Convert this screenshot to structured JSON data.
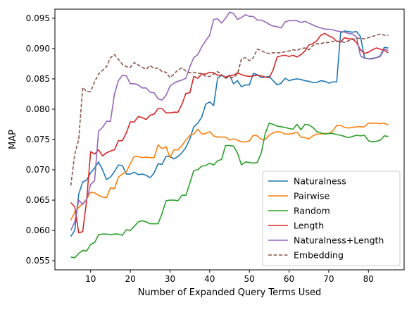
{
  "chart_data": {
    "type": "line",
    "title": "",
    "xlabel": "Number of Expanded Query Terms Used",
    "ylabel": "MAP",
    "xlim": [
      1,
      89
    ],
    "ylim": [
      0.0535,
      0.0965
    ],
    "xticks": [
      10,
      20,
      30,
      40,
      50,
      60,
      70,
      80
    ],
    "yticks": [
      0.055,
      0.06,
      0.065,
      0.07,
      0.075,
      0.08,
      0.085,
      0.09,
      0.095
    ],
    "ytick_labels": [
      "0.055",
      "0.060",
      "0.065",
      "0.070",
      "0.075",
      "0.080",
      "0.085",
      "0.090",
      "0.095"
    ],
    "grid": false,
    "legend_position": "lower-right",
    "series": [
      {
        "name": "Naturalness",
        "color": "#1f77b4",
        "dash": "solid",
        "x": [
          5,
          6,
          7,
          8,
          9,
          10,
          11,
          12,
          13,
          14,
          15,
          16,
          17,
          18,
          19,
          20,
          21,
          22,
          23,
          24,
          25,
          26,
          27,
          28,
          29,
          30,
          31,
          32,
          33,
          34,
          35,
          36,
          37,
          38,
          39,
          40,
          41,
          42,
          43,
          44,
          45,
          46,
          47,
          48,
          49,
          50,
          51,
          52,
          53,
          54,
          55,
          56,
          57,
          58,
          59,
          60,
          61,
          62,
          63,
          64,
          65,
          66,
          67,
          68,
          69,
          70,
          71,
          72,
          73,
          74,
          75,
          76,
          77,
          78,
          79,
          80,
          81,
          82,
          83,
          84,
          85
        ],
        "y": [
          0.059,
          0.06,
          0.066,
          0.068,
          0.0683,
          0.0695,
          0.0703,
          0.0713,
          0.07,
          0.0684,
          0.0688,
          0.0697,
          0.0708,
          0.0707,
          0.0693,
          0.0693,
          0.0696,
          0.0692,
          0.0693,
          0.0691,
          0.0687,
          0.0695,
          0.071,
          0.0709,
          0.0722,
          0.0722,
          0.0718,
          0.0722,
          0.0728,
          0.0737,
          0.0751,
          0.0771,
          0.0777,
          0.0787,
          0.0808,
          0.0812,
          0.0806,
          0.0851,
          0.0856,
          0.0852,
          0.0856,
          0.0842,
          0.0847,
          0.0837,
          0.084,
          0.084,
          0.0859,
          0.0857,
          0.0852,
          0.0853,
          0.0854,
          0.0847,
          0.084,
          0.0843,
          0.0851,
          0.0847,
          0.0849,
          0.085,
          0.0849,
          0.0847,
          0.0846,
          0.0844,
          0.0844,
          0.0847,
          0.0846,
          0.0843,
          0.0845,
          0.0845,
          0.0926,
          0.0929,
          0.0928,
          0.0927,
          0.0928,
          0.092,
          0.0885,
          0.0883,
          0.0883,
          0.0885,
          0.0888,
          0.0902,
          0.0901
        ]
      },
      {
        "name": "Pairwise",
        "color": "#ff7f0e",
        "dash": "solid",
        "x": [
          5,
          6,
          7,
          8,
          9,
          10,
          11,
          12,
          13,
          14,
          15,
          16,
          17,
          18,
          19,
          20,
          21,
          22,
          23,
          24,
          25,
          26,
          27,
          28,
          29,
          30,
          31,
          32,
          33,
          34,
          35,
          36,
          37,
          38,
          39,
          40,
          41,
          42,
          43,
          44,
          45,
          46,
          47,
          48,
          49,
          50,
          51,
          52,
          53,
          54,
          55,
          56,
          57,
          58,
          59,
          60,
          61,
          62,
          63,
          64,
          65,
          66,
          67,
          68,
          69,
          70,
          71,
          72,
          73,
          74,
          75,
          76,
          77,
          78,
          79,
          80,
          81,
          82,
          83,
          84,
          85
        ],
        "y": [
          0.0617,
          0.063,
          0.0638,
          0.0644,
          0.0652,
          0.0663,
          0.0662,
          0.0658,
          0.0655,
          0.0654,
          0.067,
          0.0669,
          0.0688,
          0.0693,
          0.0697,
          0.071,
          0.0722,
          0.0722,
          0.072,
          0.0721,
          0.072,
          0.072,
          0.0741,
          0.0735,
          0.0738,
          0.072,
          0.0733,
          0.0733,
          0.074,
          0.0749,
          0.0757,
          0.0759,
          0.0767,
          0.0759,
          0.076,
          0.0763,
          0.0756,
          0.0754,
          0.0754,
          0.0754,
          0.0749,
          0.0751,
          0.0749,
          0.0746,
          0.0746,
          0.0748,
          0.0757,
          0.0756,
          0.075,
          0.075,
          0.0757,
          0.0761,
          0.0763,
          0.0762,
          0.0759,
          0.0759,
          0.076,
          0.0762,
          0.0754,
          0.0753,
          0.0751,
          0.0756,
          0.0759,
          0.0759,
          0.076,
          0.076,
          0.0764,
          0.0773,
          0.0773,
          0.077,
          0.0769,
          0.077,
          0.0771,
          0.0771,
          0.0771,
          0.0777,
          0.0777,
          0.0777,
          0.0776,
          0.0777,
          0.0774
        ]
      },
      {
        "name": "Random",
        "color": "#2ca02c",
        "dash": "solid",
        "x": [
          5,
          6,
          7,
          8,
          9,
          10,
          11,
          12,
          13,
          14,
          15,
          16,
          17,
          18,
          19,
          20,
          21,
          22,
          23,
          24,
          25,
          26,
          27,
          28,
          29,
          30,
          31,
          32,
          33,
          34,
          35,
          36,
          37,
          38,
          39,
          40,
          41,
          42,
          43,
          44,
          45,
          46,
          47,
          48,
          49,
          50,
          51,
          52,
          53,
          54,
          55,
          56,
          57,
          58,
          59,
          60,
          61,
          62,
          63,
          64,
          65,
          66,
          67,
          68,
          69,
          70,
          71,
          72,
          73,
          74,
          75,
          76,
          77,
          78,
          79,
          80,
          81,
          82,
          83,
          84,
          85
        ],
        "y": [
          0.0556,
          0.0555,
          0.0562,
          0.0567,
          0.0566,
          0.0577,
          0.058,
          0.0593,
          0.0594,
          0.0594,
          0.0593,
          0.0594,
          0.0594,
          0.0592,
          0.0601,
          0.06,
          0.0607,
          0.0614,
          0.0616,
          0.0614,
          0.0611,
          0.0611,
          0.0611,
          0.0628,
          0.0649,
          0.065,
          0.065,
          0.0649,
          0.0658,
          0.0658,
          0.0678,
          0.0699,
          0.07,
          0.0706,
          0.0707,
          0.0711,
          0.0708,
          0.0715,
          0.0717,
          0.074,
          0.074,
          0.0739,
          0.0728,
          0.0708,
          0.0713,
          0.0712,
          0.0711,
          0.0712,
          0.0728,
          0.076,
          0.0777,
          0.0775,
          0.0772,
          0.0771,
          0.077,
          0.0768,
          0.0767,
          0.0775,
          0.0766,
          0.0775,
          0.0774,
          0.077,
          0.0763,
          0.0761,
          0.0759,
          0.076,
          0.076,
          0.0758,
          0.0757,
          0.0755,
          0.0753,
          0.0755,
          0.0757,
          0.0756,
          0.0757,
          0.0748,
          0.0746,
          0.0747,
          0.0749,
          0.0756,
          0.0755
        ]
      },
      {
        "name": "Length",
        "color": "#d62728",
        "dash": "solid",
        "x": [
          5,
          6,
          7,
          8,
          9,
          10,
          11,
          12,
          13,
          14,
          15,
          16,
          17,
          18,
          19,
          20,
          21,
          22,
          23,
          24,
          25,
          26,
          27,
          28,
          29,
          30,
          31,
          32,
          33,
          34,
          35,
          36,
          37,
          38,
          39,
          40,
          41,
          42,
          43,
          44,
          45,
          46,
          47,
          48,
          49,
          50,
          51,
          52,
          53,
          54,
          55,
          56,
          57,
          58,
          59,
          60,
          61,
          62,
          63,
          64,
          65,
          66,
          67,
          68,
          69,
          70,
          71,
          72,
          73,
          74,
          75,
          76,
          77,
          78,
          79,
          80,
          81,
          82,
          83,
          84,
          85
        ],
        "y": [
          0.0646,
          0.0639,
          0.0596,
          0.0598,
          0.065,
          0.073,
          0.0726,
          0.0733,
          0.0723,
          0.0728,
          0.0731,
          0.0733,
          0.0748,
          0.0748,
          0.0761,
          0.0779,
          0.0779,
          0.0788,
          0.0786,
          0.0783,
          0.079,
          0.0792,
          0.0801,
          0.0801,
          0.0794,
          0.0794,
          0.0795,
          0.0795,
          0.0808,
          0.0826,
          0.0827,
          0.0854,
          0.0851,
          0.0858,
          0.0858,
          0.0861,
          0.086,
          0.0856,
          0.0856,
          0.0853,
          0.0855,
          0.0856,
          0.086,
          0.0857,
          0.0855,
          0.0854,
          0.0855,
          0.0856,
          0.0855,
          0.0853,
          0.0852,
          0.0865,
          0.0886,
          0.0888,
          0.0889,
          0.0887,
          0.0889,
          0.0886,
          0.089,
          0.0896,
          0.0906,
          0.0908,
          0.0913,
          0.0922,
          0.0925,
          0.0921,
          0.0918,
          0.0912,
          0.0911,
          0.0918,
          0.0916,
          0.0916,
          0.091,
          0.0898,
          0.0892,
          0.0894,
          0.0898,
          0.0901,
          0.0899,
          0.0897,
          0.0893
        ]
      },
      {
        "name": "Naturalness+Length",
        "color": "#9467bd",
        "dash": "solid",
        "x": [
          5,
          6,
          7,
          8,
          9,
          10,
          11,
          12,
          13,
          14,
          15,
          16,
          17,
          18,
          19,
          20,
          21,
          22,
          23,
          24,
          25,
          26,
          27,
          28,
          29,
          30,
          31,
          32,
          33,
          34,
          35,
          36,
          37,
          38,
          39,
          40,
          41,
          42,
          43,
          44,
          45,
          46,
          47,
          48,
          49,
          50,
          51,
          52,
          53,
          54,
          55,
          56,
          57,
          58,
          59,
          60,
          61,
          62,
          63,
          64,
          65,
          66,
          67,
          68,
          69,
          70,
          71,
          72,
          73,
          74,
          75,
          76,
          77,
          78,
          79,
          80,
          81,
          82,
          83,
          84,
          85
        ],
        "y": [
          0.06,
          0.0614,
          0.065,
          0.0643,
          0.0651,
          0.0676,
          0.0682,
          0.0764,
          0.077,
          0.078,
          0.078,
          0.0825,
          0.0847,
          0.0856,
          0.0855,
          0.0842,
          0.0842,
          0.084,
          0.0835,
          0.0835,
          0.0828,
          0.0827,
          0.0817,
          0.0815,
          0.0823,
          0.0838,
          0.0843,
          0.0846,
          0.0848,
          0.0851,
          0.087,
          0.0885,
          0.089,
          0.0903,
          0.0913,
          0.0922,
          0.0948,
          0.0949,
          0.0942,
          0.095,
          0.096,
          0.0958,
          0.0948,
          0.0951,
          0.0956,
          0.0953,
          0.0953,
          0.0947,
          0.0947,
          0.0944,
          0.094,
          0.0937,
          0.0936,
          0.0934,
          0.0944,
          0.0946,
          0.0946,
          0.0946,
          0.0943,
          0.0945,
          0.0942,
          0.0939,
          0.0936,
          0.0934,
          0.0932,
          0.0932,
          0.0931,
          0.0929,
          0.0928,
          0.0927,
          0.0925,
          0.0924,
          0.0919,
          0.0888,
          0.0884,
          0.0883,
          0.0884,
          0.0885,
          0.0887,
          0.0899,
          0.0897
        ]
      },
      {
        "name": "Embedding",
        "color": "#8c564b",
        "dash": "dashed",
        "x": [
          5,
          6,
          7,
          8,
          9,
          10,
          11,
          12,
          13,
          14,
          15,
          16,
          17,
          18,
          19,
          20,
          21,
          22,
          23,
          24,
          25,
          26,
          27,
          28,
          29,
          30,
          31,
          32,
          33,
          34,
          35,
          36,
          37,
          38,
          39,
          40,
          41,
          42,
          43,
          44,
          45,
          46,
          47,
          48,
          49,
          50,
          51,
          52,
          53,
          54,
          55,
          56,
          57,
          58,
          59,
          60,
          61,
          62,
          63,
          64,
          65,
          66,
          67,
          68,
          69,
          70,
          71,
          72,
          73,
          74,
          75,
          76,
          77,
          78,
          79,
          80,
          81,
          82,
          83,
          84,
          85
        ],
        "y": [
          0.0674,
          0.0726,
          0.075,
          0.0836,
          0.0829,
          0.0829,
          0.0845,
          0.0858,
          0.0864,
          0.087,
          0.0885,
          0.089,
          0.0882,
          0.0874,
          0.087,
          0.0869,
          0.0877,
          0.0873,
          0.0869,
          0.0866,
          0.0872,
          0.0867,
          0.0868,
          0.0862,
          0.0861,
          0.0852,
          0.0858,
          0.0865,
          0.0868,
          0.0863,
          0.086,
          0.0861,
          0.0859,
          0.0859,
          0.0854,
          0.0854,
          0.0858,
          0.0862,
          0.0857,
          0.0851,
          0.0853,
          0.0852,
          0.0858,
          0.0883,
          0.0885,
          0.088,
          0.0885,
          0.0899,
          0.0897,
          0.0893,
          0.0892,
          0.0893,
          0.0893,
          0.0893,
          0.0895,
          0.0896,
          0.0898,
          0.0897,
          0.09,
          0.0901,
          0.0898,
          0.0905,
          0.0908,
          0.0908,
          0.091,
          0.091,
          0.0912,
          0.0912,
          0.0912,
          0.091,
          0.0913,
          0.0915,
          0.0917,
          0.0917,
          0.0916,
          0.0918,
          0.092,
          0.0922,
          0.0924,
          0.0922,
          0.0922
        ]
      }
    ]
  }
}
